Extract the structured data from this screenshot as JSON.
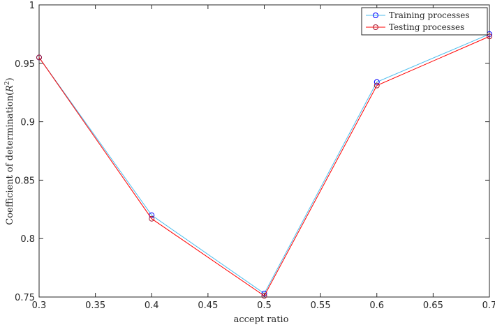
{
  "chart_data": {
    "type": "line",
    "title": "",
    "xlabel": "accept ratio",
    "ylabel_prefix": "Coefficient of determination(",
    "ylabel_var": "R",
    "ylabel_exp": "2",
    "ylabel_suffix": ")",
    "xlim": [
      0.3,
      0.7
    ],
    "ylim": [
      0.75,
      1.0
    ],
    "x_ticks": [
      "0.3",
      "0.35",
      "0.4",
      "0.45",
      "0.5",
      "0.55",
      "0.6",
      "0.65",
      "0.7"
    ],
    "y_ticks": [
      "0.75",
      "0.8",
      "0.85",
      "0.9",
      "0.95",
      "1"
    ],
    "grid": false,
    "legend_position": "top-right",
    "x": [
      0.3,
      0.4,
      0.5,
      0.6,
      0.7
    ],
    "series": [
      {
        "name": "Training processes",
        "values": [
          0.955,
          0.82,
          0.753,
          0.934,
          0.975
        ],
        "line_color": "#4dbeee",
        "marker_color": "#0000ff"
      },
      {
        "name": "Testing processes",
        "values": [
          0.955,
          0.817,
          0.751,
          0.931,
          0.973
        ],
        "line_color": "#ff0000",
        "marker_color": "#a2142f"
      }
    ]
  }
}
